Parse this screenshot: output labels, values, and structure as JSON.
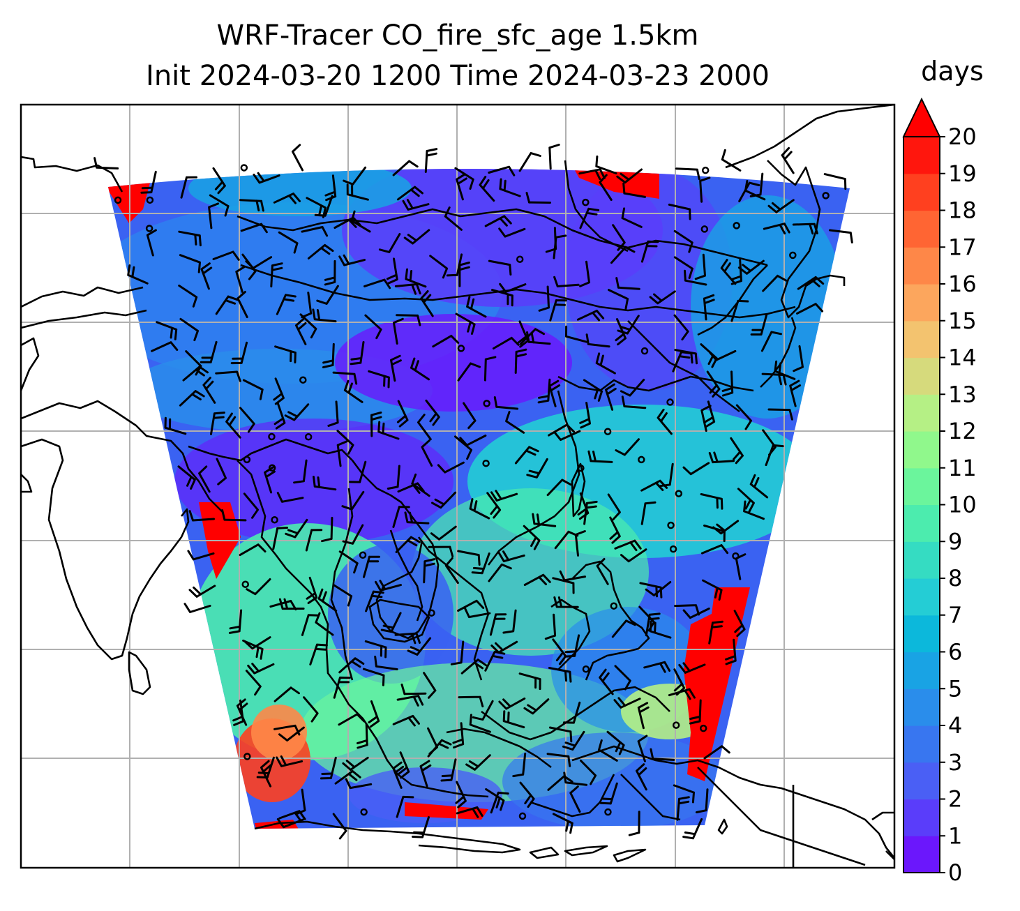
{
  "title": {
    "line1": "WRF-Tracer CO_fire_sfc_age 1.5km",
    "line2": "Init 2024-03-20 1200 Time 2024-03-23 2000"
  },
  "colorbar": {
    "unit": "days",
    "min": 0,
    "max": 20,
    "extend": "max",
    "ticks": [
      "0",
      "1",
      "2",
      "3",
      "4",
      "5",
      "6",
      "7",
      "8",
      "9",
      "10",
      "11",
      "12",
      "13",
      "14",
      "15",
      "16",
      "17",
      "18",
      "19",
      "20"
    ],
    "colors": [
      "#6b17fc",
      "#5a3dfa",
      "#4a5ff5",
      "#3876f0",
      "#2a8deb",
      "#19a3e4",
      "#0cb8db",
      "#24cdd5",
      "#35dcc2",
      "#4cecae",
      "#6bf59c",
      "#90f88c",
      "#b5f085",
      "#d6da7c",
      "#f3c36f",
      "#fca65d",
      "#fe8748",
      "#ff6533",
      "#ff401f",
      "#ff160d"
    ],
    "extend_color": "#ff0000"
  },
  "map": {
    "gridlines": true,
    "grid_color": "#b0b0b0",
    "coastline_color": "#000000",
    "field_name": "CO_fire_sfc_age"
  }
}
